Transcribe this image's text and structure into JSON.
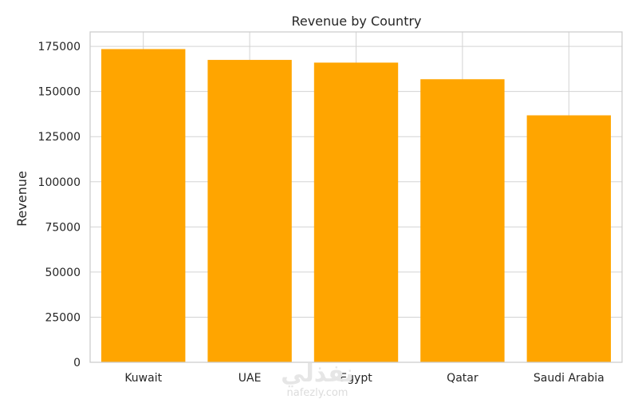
{
  "chart_data": {
    "type": "bar",
    "title": "Revenue by Country",
    "xlabel": "",
    "ylabel": "Revenue",
    "categories": [
      "Kuwait",
      "UAE",
      "Egypt",
      "Qatar",
      "Saudi Arabia"
    ],
    "values": [
      173500,
      167500,
      166000,
      156800,
      136800
    ],
    "ylim": [
      0,
      183000
    ],
    "yticks": [
      0,
      25000,
      50000,
      75000,
      100000,
      125000,
      150000,
      175000
    ],
    "ytick_labels": [
      "0",
      "25000",
      "50000",
      "75000",
      "100000",
      "125000",
      "150000",
      "175000"
    ],
    "grid": true,
    "legend": "none",
    "colors": {
      "bar": "#ffa500",
      "grid": "#d3d3d3",
      "axes": "#cccccc",
      "text": "#262626"
    }
  },
  "watermark": {
    "main": "نفذلي",
    "sub": "nafezly.com"
  }
}
